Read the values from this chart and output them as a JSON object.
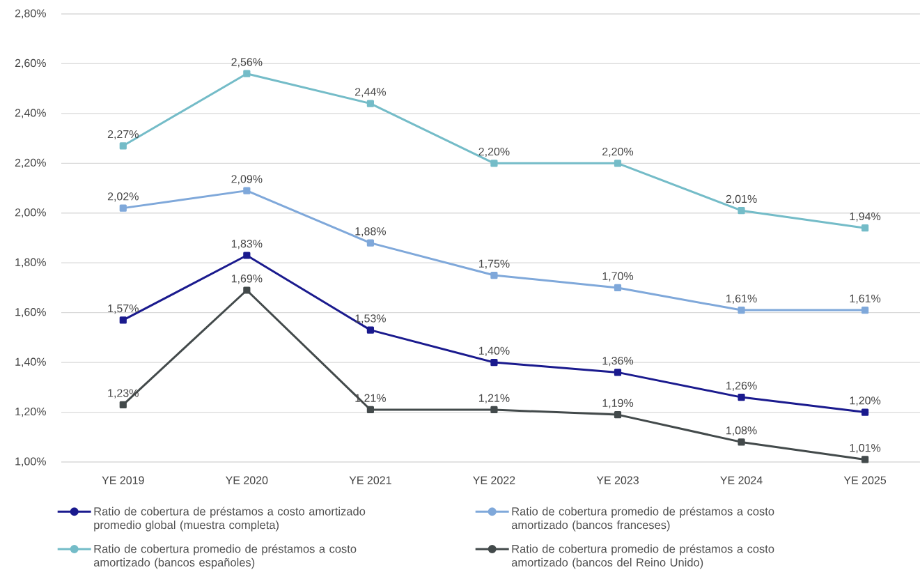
{
  "chart_data": {
    "type": "line",
    "categories": [
      "YE 2019",
      "YE 2020",
      "YE 2021",
      "YE 2022",
      "YE 2023",
      "YE 2024",
      "YE 2025"
    ],
    "series": [
      {
        "name": "Ratio de cobertura de préstamos a costo amortizado promedio global (muestra completa)",
        "color": "#1a1a8e",
        "values": [
          1.57,
          1.83,
          1.53,
          1.4,
          1.36,
          1.26,
          1.2
        ],
        "value_labels": [
          "1,57%",
          "1,83%",
          "1,53%",
          "1,40%",
          "1,36%",
          "1,26%",
          "1,20%"
        ]
      },
      {
        "name": "Ratio de cobertura promedio de préstamos a costo amortizado (bancos franceses)",
        "color": "#7fa8da",
        "values": [
          2.02,
          2.09,
          1.88,
          1.75,
          1.7,
          1.61,
          1.61
        ],
        "value_labels": [
          "2,02%",
          "2,09%",
          "1,88%",
          "1,75%",
          "1,70%",
          "1,61%",
          "1,61%"
        ]
      },
      {
        "name": "Ratio de cobertura promedio de préstamos a costo amortizado (bancos españoles)",
        "color": "#74bcc8",
        "values": [
          2.27,
          2.56,
          2.44,
          2.2,
          2.2,
          2.01,
          1.94
        ],
        "value_labels": [
          "2,27%",
          "2,56%",
          "2,44%",
          "2,20%",
          "2,20%",
          "2,01%",
          "1,94%"
        ]
      },
      {
        "name": "Ratio de cobertura promedio de préstamos a costo amortizado (bancos del Reino Unido)",
        "color": "#434a4b",
        "values": [
          1.23,
          1.69,
          1.21,
          1.21,
          1.19,
          1.08,
          1.01
        ],
        "value_labels": [
          "1,23%",
          "1,69%",
          "1,21%",
          "1,21%",
          "1,19%",
          "1,08%",
          "1,01%"
        ]
      }
    ],
    "ylim": [
      1.0,
      2.8
    ],
    "yticks": [
      {
        "value": 1.0,
        "label": "1,00%"
      },
      {
        "value": 1.2,
        "label": "1,20%"
      },
      {
        "value": 1.4,
        "label": "1,40%"
      },
      {
        "value": 1.6,
        "label": "1,60%"
      },
      {
        "value": 1.8,
        "label": "1,80%"
      },
      {
        "value": 2.0,
        "label": "2,00%"
      },
      {
        "value": 2.2,
        "label": "2,20%"
      },
      {
        "value": 2.4,
        "label": "2,40%"
      },
      {
        "value": 2.6,
        "label": "2,60%"
      },
      {
        "value": 2.8,
        "label": "2,80%"
      }
    ],
    "grid": "y",
    "legend": "bottom",
    "marker": "square",
    "line_style": "solid"
  }
}
